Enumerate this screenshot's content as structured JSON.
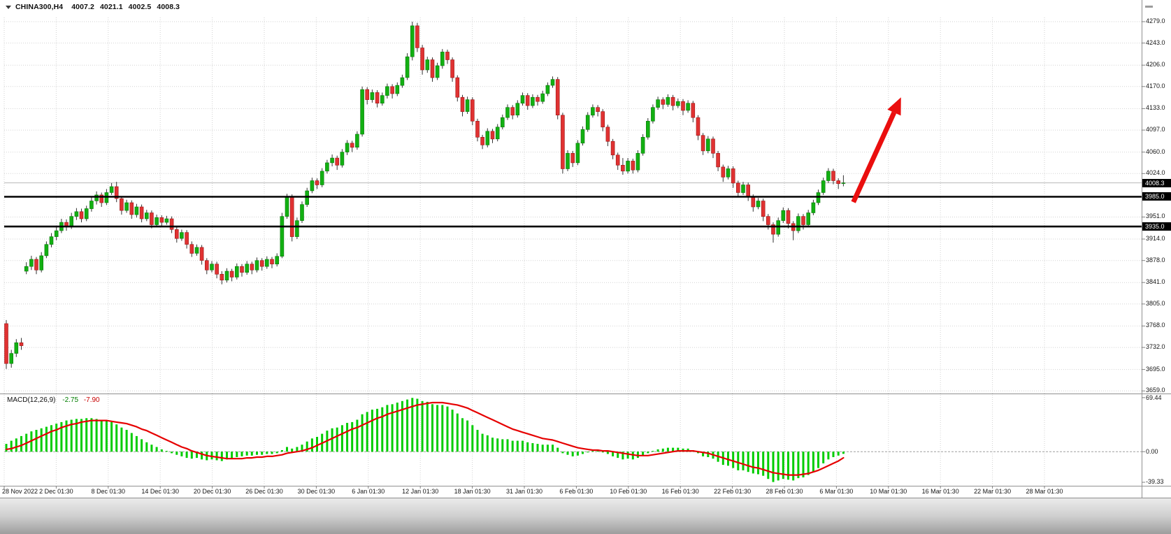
{
  "header": {
    "symbol": "CHINA300,H4",
    "open": "4007.2",
    "high": "4021.1",
    "low": "4002.5",
    "close": "4008.3"
  },
  "colors": {
    "up_fill": "#12b012",
    "up_border": "#0b7a0b",
    "down_fill": "#e03232",
    "down_border": "#9c1616",
    "wick": "#333333",
    "macd_hist": "#00cc00",
    "macd_signal": "#e60000",
    "level_line": "#000000",
    "arrow": "#ea0e0e",
    "grid": "#d2d2d2",
    "current_line": "#b8b8b8",
    "badge_bg": "#000000",
    "badge_text": "#ffffff"
  },
  "chart_data": {
    "type": "candlestick",
    "symbol": "CHINA300",
    "timeframe": "H4",
    "price_axis": {
      "labels": [
        4279.0,
        4243.0,
        4206.0,
        4170.0,
        4133.0,
        4097.0,
        4060.0,
        4024.0,
        3951.0,
        3914.0,
        3878.0,
        3841.0,
        3805.0,
        3768.0,
        3732.0,
        3695.0,
        3659.0
      ],
      "levels": [
        3985.0,
        3935.0
      ],
      "current": 4008.3
    },
    "time_axis": {
      "labels": [
        "28 Nov 2022",
        "2 Dec 01:30",
        "8 Dec 01:30",
        "14 Dec 01:30",
        "20 Dec 01:30",
        "26 Dec 01:30",
        "30 Dec 01:30",
        "6 Jan 01:30",
        "12 Jan 01:30",
        "18 Jan 01:30",
        "31 Jan 01:30",
        "6 Feb 01:30",
        "10 Feb 01:30",
        "16 Feb 01:30",
        "22 Feb 01:30",
        "28 Feb 01:30",
        "6 Mar 01:30",
        "10 Mar 01:30",
        "16 Mar 01:30",
        "22 Mar 01:30",
        "28 Mar 01:30"
      ]
    },
    "candles": [
      [
        3772,
        3778,
        3696,
        3705
      ],
      [
        3705,
        3728,
        3698,
        3722
      ],
      [
        3722,
        3746,
        3716,
        3740
      ],
      [
        3740,
        3748,
        3728,
        3735
      ],
      [
        3860,
        3875,
        3855,
        3868
      ],
      [
        3868,
        3886,
        3862,
        3880
      ],
      [
        3880,
        3884,
        3855,
        3862
      ],
      [
        3862,
        3892,
        3858,
        3886
      ],
      [
        3886,
        3910,
        3882,
        3905
      ],
      [
        3905,
        3924,
        3900,
        3918
      ],
      [
        3918,
        3934,
        3912,
        3928
      ],
      [
        3928,
        3948,
        3924,
        3942
      ],
      [
        3942,
        3947,
        3928,
        3935
      ],
      [
        3935,
        3958,
        3931,
        3952
      ],
      [
        3952,
        3966,
        3946,
        3960
      ],
      [
        3960,
        3965,
        3942,
        3948
      ],
      [
        3948,
        3970,
        3944,
        3965
      ],
      [
        3965,
        3984,
        3960,
        3978
      ],
      [
        3978,
        3994,
        3972,
        3988
      ],
      [
        3988,
        3992,
        3968,
        3975
      ],
      [
        3975,
        3998,
        3971,
        3992
      ],
      [
        3992,
        4008,
        3988,
        4002
      ],
      [
        4002,
        4010,
        3976,
        3982
      ],
      [
        3982,
        3986,
        3955,
        3962
      ],
      [
        3962,
        3980,
        3958,
        3975
      ],
      [
        3975,
        3979,
        3948,
        3955
      ],
      [
        3955,
        3973,
        3950,
        3968
      ],
      [
        3968,
        3972,
        3942,
        3948
      ],
      [
        3948,
        3963,
        3944,
        3958
      ],
      [
        3958,
        3962,
        3932,
        3938
      ],
      [
        3938,
        3955,
        3934,
        3950
      ],
      [
        3950,
        3954,
        3936,
        3942
      ],
      [
        3942,
        3953,
        3938,
        3948
      ],
      [
        3948,
        3952,
        3924,
        3930
      ],
      [
        3930,
        3934,
        3908,
        3915
      ],
      [
        3915,
        3930,
        3911,
        3925
      ],
      [
        3925,
        3929,
        3898,
        3905
      ],
      [
        3905,
        3910,
        3884,
        3890
      ],
      [
        3890,
        3905,
        3886,
        3900
      ],
      [
        3900,
        3904,
        3871,
        3878
      ],
      [
        3878,
        3882,
        3855,
        3862
      ],
      [
        3862,
        3877,
        3858,
        3872
      ],
      [
        3872,
        3876,
        3848,
        3855
      ],
      [
        3855,
        3860,
        3838,
        3845
      ],
      [
        3845,
        3865,
        3841,
        3860
      ],
      [
        3860,
        3864,
        3843,
        3850
      ],
      [
        3850,
        3873,
        3846,
        3868
      ],
      [
        3868,
        3872,
        3851,
        3858
      ],
      [
        3858,
        3877,
        3854,
        3872
      ],
      [
        3872,
        3876,
        3855,
        3862
      ],
      [
        3862,
        3883,
        3858,
        3878
      ],
      [
        3878,
        3882,
        3861,
        3868
      ],
      [
        3868,
        3885,
        3864,
        3880
      ],
      [
        3880,
        3884,
        3865,
        3872
      ],
      [
        3872,
        3890,
        3868,
        3885
      ],
      [
        3885,
        3958,
        3882,
        3952
      ],
      [
        3952,
        3990,
        3948,
        3985
      ],
      [
        3985,
        3989,
        3910,
        3918
      ],
      [
        3918,
        3950,
        3914,
        3945
      ],
      [
        3945,
        3977,
        3941,
        3972
      ],
      [
        3972,
        4000,
        3968,
        3995
      ],
      [
        3995,
        4017,
        3991,
        4012
      ],
      [
        4012,
        4016,
        3998,
        4005
      ],
      [
        4005,
        4033,
        4001,
        4028
      ],
      [
        4028,
        4047,
        4024,
        4042
      ],
      [
        4042,
        4056,
        4036,
        4050
      ],
      [
        4050,
        4054,
        4030,
        4038
      ],
      [
        4038,
        4065,
        4034,
        4060
      ],
      [
        4060,
        4080,
        4055,
        4075
      ],
      [
        4075,
        4079,
        4060,
        4068
      ],
      [
        4068,
        4095,
        4064,
        4090
      ],
      [
        4090,
        4170,
        4086,
        4165
      ],
      [
        4165,
        4169,
        4140,
        4148
      ],
      [
        4148,
        4165,
        4143,
        4160
      ],
      [
        4160,
        4164,
        4135,
        4142
      ],
      [
        4142,
        4160,
        4138,
        4155
      ],
      [
        4155,
        4175,
        4150,
        4170
      ],
      [
        4170,
        4174,
        4150,
        4158
      ],
      [
        4158,
        4177,
        4154,
        4172
      ],
      [
        4172,
        4190,
        4168,
        4185
      ],
      [
        4185,
        4226,
        4181,
        4220
      ],
      [
        4220,
        4279,
        4214,
        4272
      ],
      [
        4272,
        4277,
        4228,
        4235
      ],
      [
        4235,
        4240,
        4190,
        4198
      ],
      [
        4198,
        4220,
        4193,
        4215
      ],
      [
        4215,
        4219,
        4178,
        4185
      ],
      [
        4185,
        4210,
        4181,
        4205
      ],
      [
        4205,
        4233,
        4200,
        4228
      ],
      [
        4228,
        4232,
        4208,
        4215
      ],
      [
        4215,
        4219,
        4178,
        4185
      ],
      [
        4185,
        4189,
        4145,
        4152
      ],
      [
        4152,
        4156,
        4120,
        4128
      ],
      [
        4128,
        4153,
        4124,
        4148
      ],
      [
        4148,
        4152,
        4105,
        4112
      ],
      [
        4112,
        4116,
        4078,
        4085
      ],
      [
        4085,
        4089,
        4065,
        4072
      ],
      [
        4072,
        4100,
        4068,
        4095
      ],
      [
        4095,
        4099,
        4075,
        4082
      ],
      [
        4082,
        4107,
        4078,
        4102
      ],
      [
        4102,
        4123,
        4098,
        4118
      ],
      [
        4118,
        4140,
        4114,
        4135
      ],
      [
        4135,
        4139,
        4115,
        4122
      ],
      [
        4122,
        4147,
        4118,
        4142
      ],
      [
        4142,
        4160,
        4138,
        4155
      ],
      [
        4155,
        4159,
        4131,
        4138
      ],
      [
        4138,
        4157,
        4134,
        4152
      ],
      [
        4152,
        4156,
        4138,
        4145
      ],
      [
        4145,
        4163,
        4141,
        4158
      ],
      [
        4158,
        4177,
        4154,
        4172
      ],
      [
        4172,
        4187,
        4168,
        4182
      ],
      [
        4182,
        4186,
        4115,
        4122
      ],
      [
        4122,
        4126,
        4024,
        4032
      ],
      [
        4032,
        4063,
        4028,
        4058
      ],
      [
        4058,
        4062,
        4035,
        4042
      ],
      [
        4042,
        4080,
        4038,
        4075
      ],
      [
        4075,
        4103,
        4071,
        4098
      ],
      [
        4098,
        4127,
        4094,
        4122
      ],
      [
        4122,
        4140,
        4118,
        4135
      ],
      [
        4135,
        4139,
        4120,
        4128
      ],
      [
        4128,
        4132,
        4095,
        4102
      ],
      [
        4102,
        4106,
        4070,
        4078
      ],
      [
        4078,
        4082,
        4048,
        4055
      ],
      [
        4055,
        4059,
        4030,
        4038
      ],
      [
        4038,
        4050,
        4022,
        4028
      ],
      [
        4028,
        4050,
        4024,
        4045
      ],
      [
        4045,
        4049,
        4024,
        4030
      ],
      [
        4030,
        4063,
        4026,
        4058
      ],
      [
        4058,
        4090,
        4054,
        4085
      ],
      [
        4085,
        4117,
        4081,
        4112
      ],
      [
        4112,
        4140,
        4108,
        4135
      ],
      [
        4135,
        4153,
        4131,
        4148
      ],
      [
        4148,
        4152,
        4132,
        4140
      ],
      [
        4140,
        4157,
        4136,
        4152
      ],
      [
        4152,
        4156,
        4130,
        4138
      ],
      [
        4138,
        4150,
        4134,
        4145
      ],
      [
        4145,
        4149,
        4122,
        4130
      ],
      [
        4130,
        4147,
        4126,
        4142
      ],
      [
        4142,
        4146,
        4110,
        4118
      ],
      [
        4118,
        4122,
        4080,
        4088
      ],
      [
        4088,
        4092,
        4055,
        4062
      ],
      [
        4062,
        4087,
        4058,
        4082
      ],
      [
        4082,
        4086,
        4050,
        4058
      ],
      [
        4058,
        4062,
        4028,
        4035
      ],
      [
        4035,
        4039,
        4010,
        4018
      ],
      [
        4018,
        4037,
        4014,
        4032
      ],
      [
        4032,
        4036,
        4000,
        4008
      ],
      [
        4008,
        4012,
        3984,
        3992
      ],
      [
        3992,
        4010,
        3988,
        4005
      ],
      [
        4005,
        4009,
        3978,
        3985
      ],
      [
        3985,
        3989,
        3960,
        3968
      ],
      [
        3968,
        3983,
        3964,
        3978
      ],
      [
        3978,
        3982,
        3944,
        3952
      ],
      [
        3952,
        3956,
        3930,
        3938
      ],
      [
        3938,
        3942,
        3908,
        3922
      ],
      [
        3922,
        3950,
        3918,
        3945
      ],
      [
        3945,
        3967,
        3941,
        3962
      ],
      [
        3962,
        3966,
        3932,
        3940
      ],
      [
        3940,
        3944,
        3912,
        3928
      ],
      [
        3928,
        3957,
        3924,
        3952
      ],
      [
        3952,
        3956,
        3930,
        3938
      ],
      [
        3938,
        3963,
        3934,
        3958
      ],
      [
        3958,
        3980,
        3954,
        3975
      ],
      [
        3975,
        3997,
        3971,
        3992
      ],
      [
        3992,
        4017,
        3988,
        4012
      ],
      [
        4012,
        4033,
        4008,
        4028
      ],
      [
        4028,
        4032,
        4006,
        4012
      ],
      [
        4012,
        4016,
        3998,
        4007
      ],
      [
        4007.2,
        4021.1,
        4002.5,
        4008.3
      ]
    ],
    "macd": {
      "label": "MACD(12,26,9)",
      "main_value": "-2.75",
      "signal_value": "-7.90",
      "axis_values": [
        69.44,
        0.0,
        -39.33
      ],
      "histogram": [
        10,
        14,
        17,
        20,
        23,
        26,
        28,
        30,
        32,
        34,
        36,
        38,
        40,
        41,
        42,
        42,
        43,
        43,
        42,
        41,
        40,
        38,
        35,
        31,
        28,
        24,
        20,
        16,
        12,
        9,
        6,
        3,
        1,
        -2,
        -4,
        -6,
        -8,
        -9,
        -8,
        -10,
        -11,
        -10,
        -11,
        -12,
        -10,
        -9,
        -7,
        -6,
        -5,
        -5,
        -4,
        -4,
        -3,
        -3,
        -2,
        2,
        6,
        4,
        6,
        9,
        13,
        17,
        19,
        23,
        27,
        30,
        31,
        34,
        37,
        38,
        41,
        48,
        51,
        54,
        55,
        57,
        60,
        61,
        63,
        65,
        67,
        69,
        68,
        65,
        64,
        61,
        60,
        60,
        58,
        54,
        49,
        43,
        40,
        34,
        28,
        23,
        21,
        18,
        17,
        16,
        16,
        14,
        14,
        14,
        12,
        11,
        10,
        9,
        9,
        9,
        5,
        -2,
        -4,
        -6,
        -5,
        -3,
        -1,
        1,
        1,
        -1,
        -3,
        -6,
        -8,
        -10,
        -9,
        -10,
        -8,
        -5,
        -2,
        1,
        3,
        4,
        5,
        5,
        5,
        4,
        4,
        2,
        -2,
        -6,
        -7,
        -9,
        -13,
        -17,
        -18,
        -21,
        -24,
        -24,
        -26,
        -28,
        -29,
        -31,
        -35,
        -39,
        -37,
        -35,
        -36,
        -37,
        -34,
        -33,
        -30,
        -26,
        -21,
        -15,
        -10,
        -7,
        -5,
        -2.75
      ],
      "signal": [
        3,
        4,
        6,
        8,
        11,
        14,
        17,
        20,
        23,
        26,
        28,
        31,
        33,
        35,
        36,
        38,
        39,
        40,
        40,
        40,
        40,
        39,
        38,
        37,
        36,
        34,
        32,
        29,
        27,
        24,
        21,
        18,
        15,
        12,
        9,
        6,
        4,
        1,
        -1,
        -3,
        -5,
        -6,
        -7,
        -8,
        -9,
        -9,
        -9,
        -9,
        -8,
        -8,
        -7,
        -7,
        -6,
        -6,
        -5,
        -4,
        -2,
        -1,
        0,
        1,
        3,
        5,
        8,
        11,
        14,
        17,
        20,
        23,
        26,
        29,
        31,
        34,
        37,
        40,
        43,
        45,
        48,
        50,
        52,
        54,
        56,
        58,
        60,
        61,
        62,
        63,
        63,
        63,
        62,
        61,
        60,
        58,
        56,
        53,
        50,
        47,
        44,
        41,
        38,
        35,
        32,
        29,
        27,
        25,
        23,
        21,
        19,
        17,
        16,
        15,
        13,
        11,
        9,
        7,
        5,
        4,
        3,
        2,
        2,
        1,
        1,
        0,
        -1,
        -2,
        -3,
        -4,
        -5,
        -5,
        -5,
        -4,
        -3,
        -2,
        -1,
        0,
        1,
        1,
        1,
        1,
        0,
        -1,
        -2,
        -4,
        -6,
        -8,
        -10,
        -12,
        -14,
        -16,
        -18,
        -20,
        -21,
        -23,
        -25,
        -27,
        -28,
        -29,
        -30,
        -30,
        -30,
        -29,
        -28,
        -26,
        -24,
        -21,
        -18,
        -15,
        -12,
        -7.9
      ]
    },
    "annotations": [
      {
        "type": "arrow",
        "direction": "up-right",
        "color": "#ea0e0e",
        "from": {
          "bar": 169,
          "price": 3976
        },
        "to": {
          "bar": 178.5,
          "price": 4152
        }
      }
    ]
  }
}
